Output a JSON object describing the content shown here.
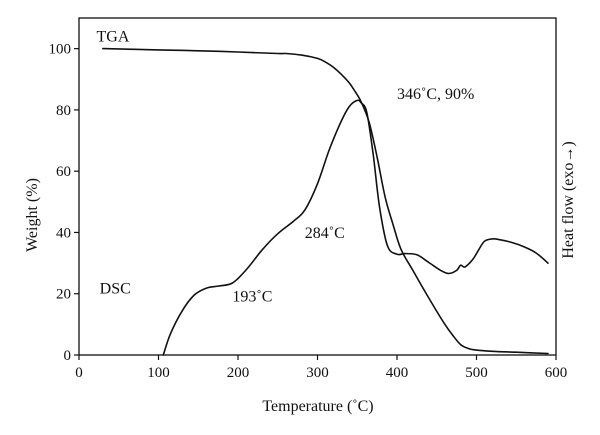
{
  "chart_data": {
    "type": "line",
    "xlabel": "Temperature (˚C)",
    "ylabel": "Weight (%)",
    "ylabel_right": "Heat flow (exo→)",
    "xlim": [
      0,
      600
    ],
    "ylim": [
      0,
      110
    ],
    "xticks": [
      0,
      100,
      200,
      300,
      400,
      500,
      600
    ],
    "yticks": [
      0,
      20,
      40,
      60,
      80,
      100
    ],
    "grid": false,
    "series": [
      {
        "name": "TGA",
        "axis": "left",
        "x": [
          30,
          100,
          150,
          200,
          250,
          260,
          280,
          300,
          310,
          320,
          330,
          340,
          346,
          355,
          365,
          375,
          385,
          395,
          405,
          420,
          440,
          460,
          470,
          480,
          490,
          500,
          520,
          550,
          590
        ],
        "y": [
          100,
          99.6,
          99.3,
          98.9,
          98.4,
          98.4,
          97.9,
          96.8,
          95.6,
          93.9,
          91.6,
          88.8,
          86.5,
          82.6,
          75.9,
          64.6,
          51.6,
          42.6,
          34.5,
          27.6,
          18.6,
          10.1,
          6.5,
          3.4,
          2.1,
          1.6,
          1.2,
          0.9,
          0.5
        ]
      },
      {
        "name": "DSC",
        "axis": "right",
        "x": [
          106,
          115,
          130,
          145,
          160,
          175,
          193,
          210,
          230,
          250,
          270,
          284,
          300,
          315,
          330,
          340,
          350,
          355,
          362,
          370,
          378,
          388,
          400,
          410,
          425,
          440,
          455,
          465,
          475,
          480,
          485,
          492,
          497,
          502,
          510,
          520,
          530,
          545,
          560,
          575,
          590
        ],
        "y": [
          0,
          6.9,
          14.5,
          19.6,
          21.8,
          22.5,
          23.5,
          27.7,
          34.2,
          39.6,
          43.7,
          47.3,
          55.9,
          67.1,
          76.4,
          81.1,
          83.1,
          82.3,
          79.2,
          65.5,
          48.4,
          35.6,
          32.9,
          33.1,
          32.7,
          30.2,
          27.6,
          26.6,
          27.6,
          29.3,
          28.7,
          30.2,
          31.8,
          34.0,
          37.1,
          37.9,
          37.6,
          36.7,
          35.3,
          33.3,
          30.0
        ]
      }
    ],
    "annotations": [
      {
        "text": "TGA",
        "x": 22,
        "y": 102.3
      },
      {
        "text": "DSC",
        "x": 26,
        "y": 20
      },
      {
        "text": "346˚C, 90%",
        "x": 400,
        "y": 83.5
      },
      {
        "text": "284˚C",
        "x": 284,
        "y": 38.2
      },
      {
        "text": "193˚C",
        "x": 193,
        "y": 17.5
      }
    ]
  }
}
